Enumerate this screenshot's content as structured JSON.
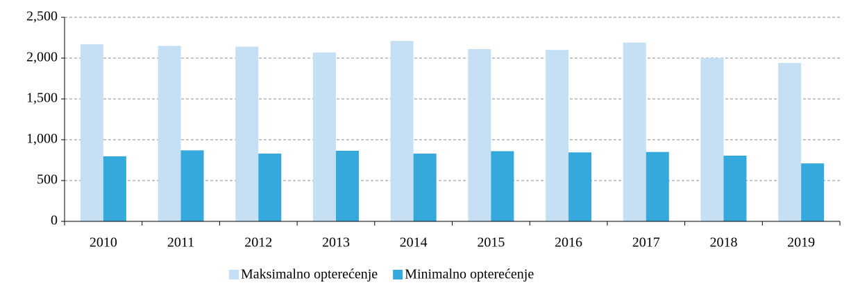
{
  "chart_data": {
    "type": "bar",
    "categories": [
      "2010",
      "2011",
      "2012",
      "2013",
      "2014",
      "2015",
      "2016",
      "2017",
      "2018",
      "2019"
    ],
    "series": [
      {
        "name": "Maksimalno opterećenje",
        "color": "#c5e0f4",
        "values": [
          2170,
          2150,
          2140,
          2070,
          2210,
          2110,
          2100,
          2190,
          2000,
          1940
        ]
      },
      {
        "name": "Minimalno opterećenje",
        "color": "#35a9dc",
        "values": [
          797,
          870,
          830,
          865,
          830,
          860,
          845,
          850,
          805,
          710
        ]
      }
    ],
    "ylim": [
      0,
      2500
    ],
    "yticks": [
      0,
      500,
      {
        "value": 1000,
        "label": "1,000"
      },
      {
        "value": 1500,
        "label": "1,500"
      },
      {
        "value": 2000,
        "label": "2,000"
      },
      {
        "value": 2500,
        "label": "2,500"
      }
    ],
    "grid": true,
    "legend": "bottom"
  }
}
